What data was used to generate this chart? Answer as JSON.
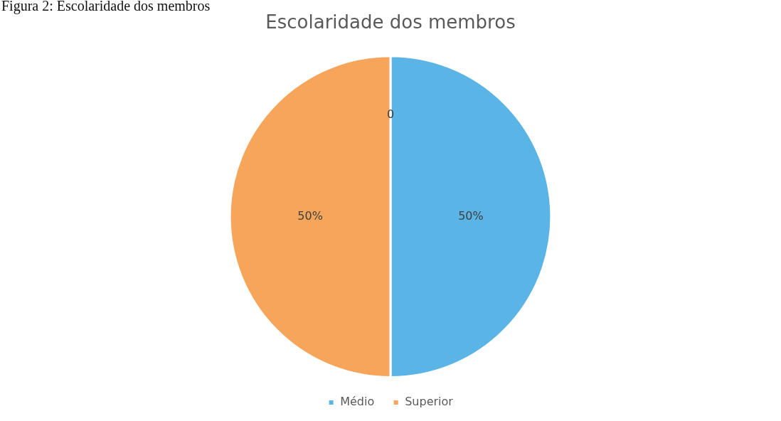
{
  "chart_data": {
    "type": "pie",
    "title": "Escolaridade dos membros",
    "categories": [
      "Médio",
      "Superior"
    ],
    "values": [
      50,
      50
    ],
    "colors": [
      "#5ab4e6",
      "#f6a55a"
    ],
    "value_labels": [
      "50%",
      "50%"
    ],
    "legend": "bottom",
    "annotations": [
      "Figura 2: Escolaridade dos membros",
      "0"
    ]
  }
}
